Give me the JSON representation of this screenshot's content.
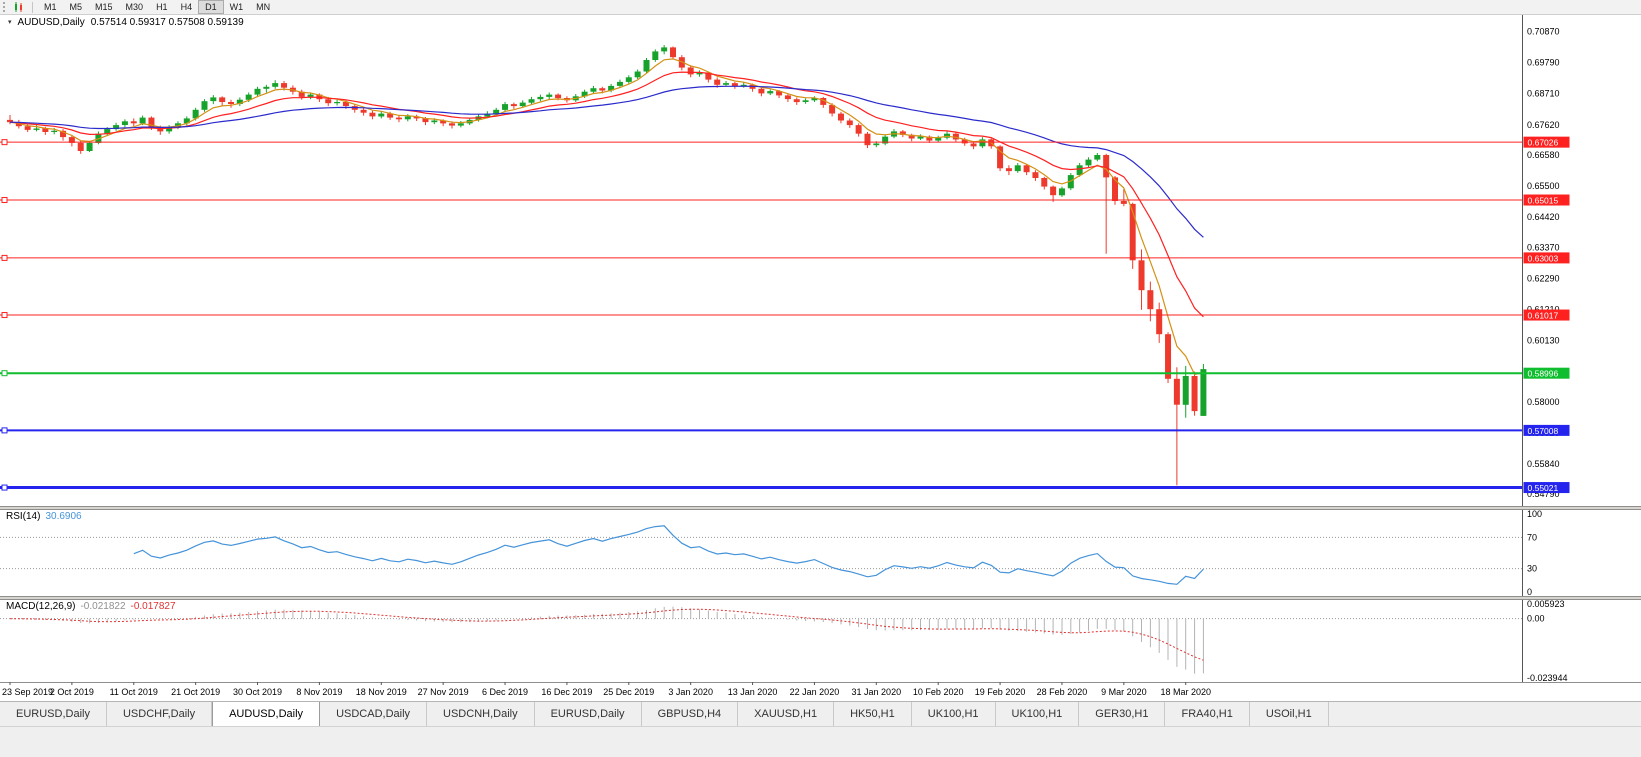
{
  "toolbar": {
    "timeframes": [
      "M1",
      "M5",
      "M15",
      "M30",
      "H1",
      "H4",
      "D1",
      "W1",
      "MN"
    ],
    "active": "D1"
  },
  "header": {
    "symbol": "AUDUSD,Daily",
    "ohlc": "0.57514 0.59317 0.57508 0.59139"
  },
  "tabs": {
    "items": [
      "EURUSD,Daily",
      "USDCHF,Daily",
      "AUDUSD,Daily",
      "USDCAD,Daily",
      "USDCNH,Daily",
      "EURUSD,Daily",
      "GBPUSD,H4",
      "XAUUSD,H1",
      "HK50,H1",
      "UK100,H1",
      "UK100,H1",
      "GER30,H1",
      "FRA40,H1",
      "USOil,H1"
    ],
    "active_index": 2
  },
  "chart_data": {
    "type": "candlestick",
    "title": "AUDUSD,Daily",
    "up_color": "#17A32B",
    "down_color": "#EE3A2C",
    "price_axis": {
      "top_price": 0.7148,
      "bottom_price": 0.5438,
      "labels": [
        "0.70870",
        "0.69790",
        "0.68710",
        "0.67620",
        "0.66580",
        "0.65500",
        "0.64420",
        "0.63370",
        "0.62290",
        "0.61210",
        "0.60130",
        "0.59050",
        "0.58000",
        "0.56920",
        "0.55840",
        "0.54790"
      ]
    },
    "x_labels": [
      "23 Sep 2019",
      "2 Oct 2019",
      "11 Oct 2019",
      "21 Oct 2019",
      "30 Oct 2019",
      "8 Nov 2019",
      "18 Nov 2019",
      "27 Nov 2019",
      "6 Dec 2019",
      "16 Dec 2019",
      "25 Dec 2019",
      "3 Jan 2020",
      "13 Jan 2020",
      "22 Jan 2020",
      "31 Jan 2020",
      "10 Feb 2020",
      "19 Feb 2020",
      "28 Feb 2020",
      "9 Mar 2020",
      "18 Mar 2020"
    ],
    "label_step": 7,
    "candles": [
      [
        0.678,
        0.6797,
        0.6765,
        0.6772
      ],
      [
        0.6772,
        0.678,
        0.675,
        0.6758
      ],
      [
        0.6758,
        0.6768,
        0.6738,
        0.6745
      ],
      [
        0.6745,
        0.6762,
        0.674,
        0.675
      ],
      [
        0.675,
        0.6756,
        0.6728,
        0.6738
      ],
      [
        0.6738,
        0.6752,
        0.673,
        0.6742
      ],
      [
        0.6742,
        0.6748,
        0.6708,
        0.672
      ],
      [
        0.672,
        0.6728,
        0.6688,
        0.67
      ],
      [
        0.67,
        0.6708,
        0.6662,
        0.6672
      ],
      [
        0.6672,
        0.6706,
        0.6668,
        0.67
      ],
      [
        0.67,
        0.674,
        0.6695,
        0.6732
      ],
      [
        0.6732,
        0.6755,
        0.6725,
        0.6748
      ],
      [
        0.6748,
        0.677,
        0.6742,
        0.6762
      ],
      [
        0.6762,
        0.6782,
        0.6755,
        0.6775
      ],
      [
        0.6775,
        0.6785,
        0.6758,
        0.6768
      ],
      [
        0.6768,
        0.6795,
        0.6762,
        0.6788
      ],
      [
        0.6788,
        0.6792,
        0.6745,
        0.6752
      ],
      [
        0.6752,
        0.676,
        0.6728,
        0.674
      ],
      [
        0.674,
        0.6762,
        0.6732,
        0.6756
      ],
      [
        0.6756,
        0.6775,
        0.6748,
        0.6768
      ],
      [
        0.6768,
        0.6792,
        0.676,
        0.6785
      ],
      [
        0.6785,
        0.6822,
        0.6778,
        0.6815
      ],
      [
        0.6815,
        0.6852,
        0.6808,
        0.6845
      ],
      [
        0.6845,
        0.6866,
        0.6835,
        0.6858
      ],
      [
        0.6858,
        0.6862,
        0.683,
        0.6842
      ],
      [
        0.6842,
        0.685,
        0.6822,
        0.6835
      ],
      [
        0.6835,
        0.6858,
        0.6828,
        0.685
      ],
      [
        0.685,
        0.6875,
        0.6842,
        0.6868
      ],
      [
        0.6868,
        0.6895,
        0.686,
        0.6888
      ],
      [
        0.6888,
        0.6902,
        0.6875,
        0.6895
      ],
      [
        0.6895,
        0.6918,
        0.6888,
        0.6908
      ],
      [
        0.6908,
        0.6915,
        0.6882,
        0.6892
      ],
      [
        0.6892,
        0.69,
        0.6868,
        0.6878
      ],
      [
        0.6878,
        0.6885,
        0.685,
        0.686
      ],
      [
        0.686,
        0.6875,
        0.6852,
        0.6868
      ],
      [
        0.6868,
        0.6872,
        0.6842,
        0.6852
      ],
      [
        0.6852,
        0.686,
        0.6828,
        0.6838
      ],
      [
        0.6838,
        0.685,
        0.683,
        0.6842
      ],
      [
        0.6842,
        0.6848,
        0.6818,
        0.6828
      ],
      [
        0.6828,
        0.6835,
        0.6805,
        0.6815
      ],
      [
        0.6815,
        0.6822,
        0.6795,
        0.6805
      ],
      [
        0.6805,
        0.6812,
        0.6782,
        0.6792
      ],
      [
        0.6792,
        0.681,
        0.6785,
        0.6802
      ],
      [
        0.6802,
        0.6808,
        0.678,
        0.6788
      ],
      [
        0.6788,
        0.6795,
        0.6772,
        0.6782
      ],
      [
        0.6782,
        0.68,
        0.6775,
        0.6792
      ],
      [
        0.6792,
        0.6798,
        0.6776,
        0.6785
      ],
      [
        0.6785,
        0.679,
        0.6762,
        0.6772
      ],
      [
        0.6772,
        0.6786,
        0.6765,
        0.6778
      ],
      [
        0.6778,
        0.6782,
        0.6758,
        0.6768
      ],
      [
        0.6768,
        0.6775,
        0.675,
        0.676
      ],
      [
        0.676,
        0.6776,
        0.6754,
        0.6768
      ],
      [
        0.6768,
        0.6788,
        0.6762,
        0.678
      ],
      [
        0.678,
        0.68,
        0.6774,
        0.6792
      ],
      [
        0.6792,
        0.681,
        0.6786,
        0.6802
      ],
      [
        0.6802,
        0.6822,
        0.6796,
        0.6815
      ],
      [
        0.6815,
        0.6842,
        0.681,
        0.6835
      ],
      [
        0.6835,
        0.684,
        0.6818,
        0.6828
      ],
      [
        0.6828,
        0.6848,
        0.6822,
        0.684
      ],
      [
        0.684,
        0.686,
        0.6834,
        0.6852
      ],
      [
        0.6852,
        0.6868,
        0.6845,
        0.686
      ],
      [
        0.686,
        0.6875,
        0.6852,
        0.6868
      ],
      [
        0.6868,
        0.6872,
        0.6848,
        0.6856
      ],
      [
        0.6856,
        0.6862,
        0.684,
        0.6848
      ],
      [
        0.6848,
        0.687,
        0.6842,
        0.6862
      ],
      [
        0.6862,
        0.6885,
        0.6856,
        0.6878
      ],
      [
        0.6878,
        0.6898,
        0.6872,
        0.689
      ],
      [
        0.689,
        0.6895,
        0.6872,
        0.6882
      ],
      [
        0.6882,
        0.6905,
        0.6876,
        0.6898
      ],
      [
        0.6898,
        0.692,
        0.6892,
        0.6912
      ],
      [
        0.6912,
        0.6935,
        0.6906,
        0.6928
      ],
      [
        0.6928,
        0.6955,
        0.6922,
        0.6948
      ],
      [
        0.6948,
        0.6995,
        0.6942,
        0.6988
      ],
      [
        0.6988,
        0.7025,
        0.6982,
        0.7018
      ],
      [
        0.7018,
        0.704,
        0.7008,
        0.7032
      ],
      [
        0.7032,
        0.7035,
        0.699,
        0.6998
      ],
      [
        0.6998,
        0.7005,
        0.6952,
        0.6962
      ],
      [
        0.6962,
        0.697,
        0.6928,
        0.6938
      ],
      [
        0.6938,
        0.6952,
        0.693,
        0.6945
      ],
      [
        0.6945,
        0.6948,
        0.691,
        0.692
      ],
      [
        0.692,
        0.6928,
        0.6892,
        0.6902
      ],
      [
        0.6902,
        0.6915,
        0.6896,
        0.6908
      ],
      [
        0.6908,
        0.6912,
        0.6888,
        0.6898
      ],
      [
        0.6898,
        0.691,
        0.6892,
        0.6902
      ],
      [
        0.6902,
        0.6906,
        0.6878,
        0.6888
      ],
      [
        0.6888,
        0.6893,
        0.6862,
        0.6872
      ],
      [
        0.6872,
        0.6886,
        0.6866,
        0.688
      ],
      [
        0.688,
        0.6884,
        0.6856,
        0.6865
      ],
      [
        0.6865,
        0.687,
        0.6842,
        0.6852
      ],
      [
        0.6852,
        0.6858,
        0.6832,
        0.6842
      ],
      [
        0.6842,
        0.6855,
        0.6836,
        0.6848
      ],
      [
        0.6848,
        0.6862,
        0.6842,
        0.6856
      ],
      [
        0.6856,
        0.686,
        0.6822,
        0.6832
      ],
      [
        0.6832,
        0.6838,
        0.6792,
        0.6802
      ],
      [
        0.6802,
        0.6808,
        0.6768,
        0.6778
      ],
      [
        0.6778,
        0.6785,
        0.6752,
        0.6762
      ],
      [
        0.6762,
        0.6768,
        0.6722,
        0.6732
      ],
      [
        0.6732,
        0.6738,
        0.6682,
        0.6692
      ],
      [
        0.6692,
        0.6706,
        0.6685,
        0.6698
      ],
      [
        0.6698,
        0.673,
        0.6692,
        0.6722
      ],
      [
        0.6722,
        0.6748,
        0.6716,
        0.674
      ],
      [
        0.674,
        0.6745,
        0.672,
        0.6728
      ],
      [
        0.6728,
        0.6732,
        0.6706,
        0.6715
      ],
      [
        0.6715,
        0.673,
        0.671,
        0.6722
      ],
      [
        0.6722,
        0.6726,
        0.67,
        0.6708
      ],
      [
        0.6708,
        0.6725,
        0.6702,
        0.6718
      ],
      [
        0.6718,
        0.674,
        0.6712,
        0.6732
      ],
      [
        0.6732,
        0.6736,
        0.6704,
        0.6712
      ],
      [
        0.6712,
        0.6718,
        0.669,
        0.6698
      ],
      [
        0.6698,
        0.6705,
        0.6678,
        0.6688
      ],
      [
        0.6688,
        0.672,
        0.6682,
        0.6712
      ],
      [
        0.6712,
        0.6716,
        0.668,
        0.6688
      ],
      [
        0.6688,
        0.6692,
        0.6602,
        0.6612
      ],
      [
        0.6612,
        0.6622,
        0.6588,
        0.6602
      ],
      [
        0.6602,
        0.663,
        0.6596,
        0.6622
      ],
      [
        0.6622,
        0.6626,
        0.6588,
        0.6598
      ],
      [
        0.6598,
        0.6605,
        0.6568,
        0.6578
      ],
      [
        0.6578,
        0.6582,
        0.6538,
        0.6548
      ],
      [
        0.6548,
        0.6552,
        0.6495,
        0.6518
      ],
      [
        0.6518,
        0.6548,
        0.6512,
        0.6542
      ],
      [
        0.6542,
        0.6595,
        0.6536,
        0.6588
      ],
      [
        0.6588,
        0.663,
        0.6582,
        0.6622
      ],
      [
        0.6622,
        0.665,
        0.6616,
        0.6642
      ],
      [
        0.6642,
        0.6665,
        0.6636,
        0.6658
      ],
      [
        0.6658,
        0.6662,
        0.6315,
        0.658
      ],
      [
        0.658,
        0.6585,
        0.6485,
        0.6498
      ],
      [
        0.6498,
        0.654,
        0.648,
        0.6488
      ],
      [
        0.6488,
        0.6492,
        0.6262,
        0.6292
      ],
      [
        0.6292,
        0.633,
        0.612,
        0.6188
      ],
      [
        0.6188,
        0.6218,
        0.608,
        0.6122
      ],
      [
        0.6122,
        0.6145,
        0.6005,
        0.6035
      ],
      [
        0.6035,
        0.6042,
        0.5865,
        0.588
      ],
      [
        0.588,
        0.592,
        0.551,
        0.579
      ],
      [
        0.579,
        0.5925,
        0.5745,
        0.589
      ],
      [
        0.589,
        0.5905,
        0.5752,
        0.5768
      ],
      [
        0.57514,
        0.59317,
        0.57508,
        0.59139
      ]
    ],
    "moving_averages": [
      {
        "period": 5,
        "color": "#D49114"
      },
      {
        "period": 13,
        "color": "#FF2020"
      },
      {
        "period": 34,
        "color": "#2B2BCC"
      }
    ],
    "hlines": [
      {
        "price": 0.67026,
        "label": "0.67026",
        "color": "#FF2020",
        "width": 1
      },
      {
        "price": 0.65015,
        "label": "0.65015",
        "color": "#FF2020",
        "width": 1
      },
      {
        "price": 0.63003,
        "label": "0.63003",
        "color": "#FF2020",
        "width": 1
      },
      {
        "price": 0.61017,
        "label": "0.61017",
        "color": "#FF2020",
        "width": 1
      },
      {
        "price": 0.58996,
        "label": "0.58996",
        "color": "#0FBE2E",
        "width": 2
      },
      {
        "price": 0.57008,
        "label": "0.57008",
        "color": "#2424EE",
        "width": 2
      },
      {
        "price": 0.55021,
        "label": "0.55021",
        "color": "#2424EE",
        "width": 3
      }
    ],
    "rsi": {
      "label": "RSI(14)",
      "value": "30.6906",
      "period": 14,
      "color": "#4593D9",
      "levels": [
        70,
        30
      ],
      "scale_labels": [
        {
          "v": 100,
          "t": "100"
        },
        {
          "v": 70,
          "t": "70"
        },
        {
          "v": 30,
          "t": "30"
        },
        {
          "v": 0,
          "t": "0"
        }
      ]
    },
    "macd": {
      "label": "MACD(12,26,9)",
      "main_value": "-0.021822",
      "signal_value": "-0.017827",
      "fast": 12,
      "slow": 26,
      "signal": 9,
      "max": 0.005923,
      "min": -0.023944,
      "hist_color": "#B3B3B3",
      "signal_color": "#E03232",
      "scale_labels": [
        {
          "v": 0.005923,
          "t": "0.005923"
        },
        {
          "v": 0,
          "t": "0.00"
        },
        {
          "v": -0.023944,
          "t": "-0.023944"
        }
      ]
    }
  }
}
